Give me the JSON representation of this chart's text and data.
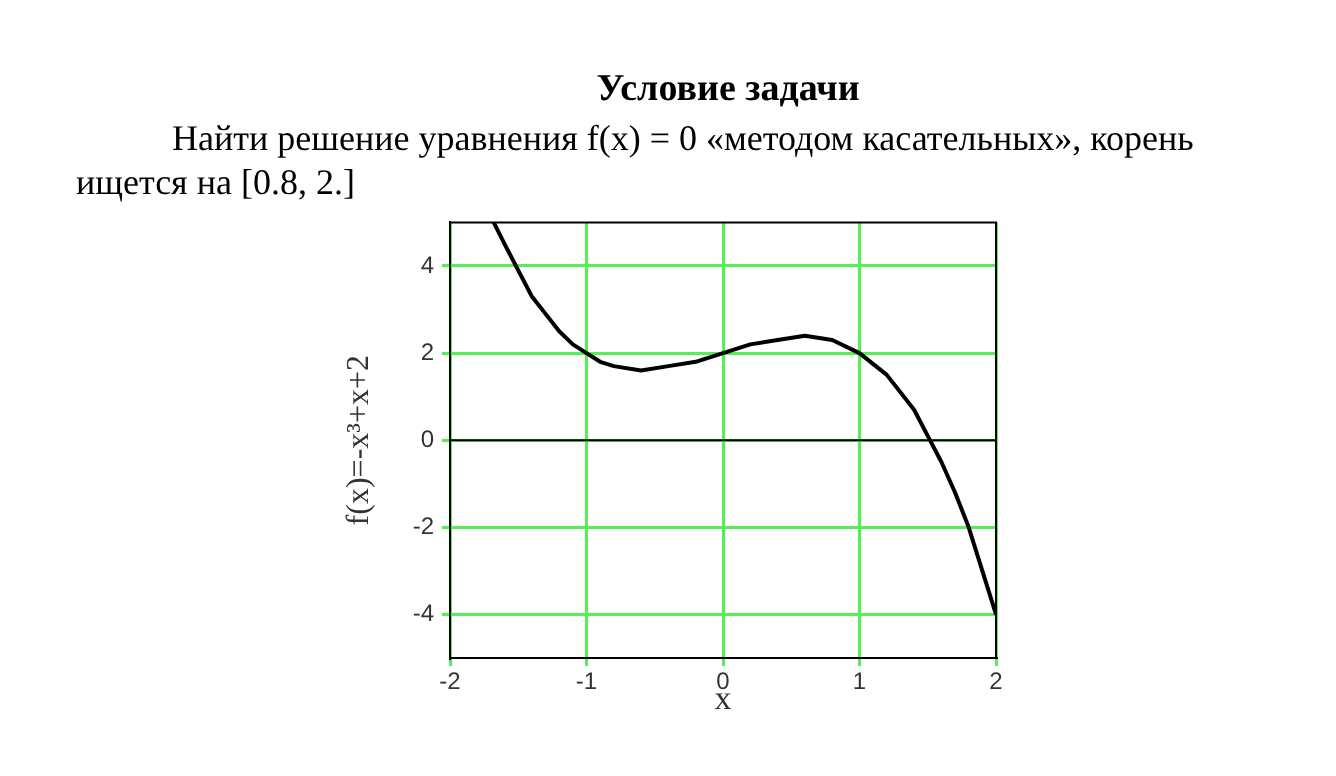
{
  "chart_data": {
    "type": "line",
    "title": "Условие задачи",
    "subtitle": "Найти решение уравнения f(x) = 0 «методом касательных», корень ищется на [0.8, 2.]",
    "xlabel": "x",
    "ylabel": "f(x)=-x³+x+2",
    "series": [
      {
        "color": "#000000",
        "x": [
          -1.68,
          -1.6,
          -1.5,
          -1.4,
          -1.3,
          -1.2,
          -1.1,
          -1,
          -0.9,
          -0.8,
          -0.6,
          -0.4,
          -0.2,
          0,
          0.2,
          0.4,
          0.6,
          0.8,
          1,
          1.2,
          1.4,
          1.5,
          1.6,
          1.7,
          1.8,
          1.9,
          2
        ],
        "values": [
          5.0,
          4.5,
          3.9,
          3.3,
          2.9,
          2.5,
          2.2,
          2.0,
          1.8,
          1.7,
          1.6,
          1.7,
          1.8,
          2.0,
          2.2,
          2.3,
          2.4,
          2.3,
          2.0,
          1.5,
          0.7,
          0.1,
          -0.5,
          -1.2,
          -2.0,
          -3.0,
          -4.0
        ]
      }
    ],
    "xlim": [
      -2,
      2
    ],
    "xticks": [
      -2,
      -1,
      0,
      1,
      2
    ],
    "ylim": [
      -5,
      5
    ],
    "yticks": [
      -4,
      -2,
      0,
      2,
      4
    ],
    "ref_lines": [
      {
        "axis": "y",
        "value": 0,
        "color": "#000000"
      }
    ],
    "grid": true,
    "legend": false,
    "marker": "none",
    "line_style": "solid"
  }
}
